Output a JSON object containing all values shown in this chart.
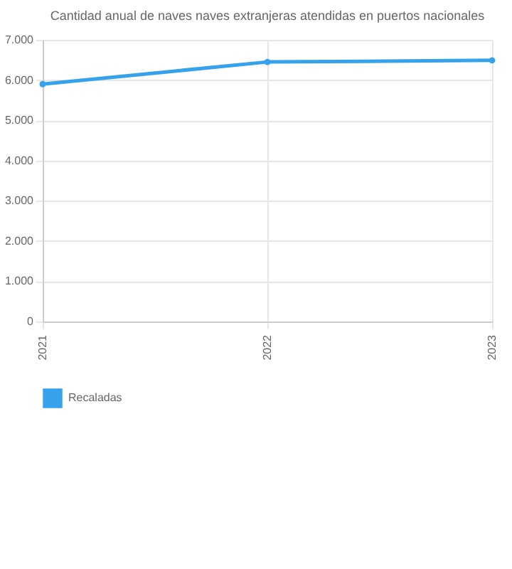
{
  "chart_data": {
    "type": "line",
    "title": "Cantidad anual de naves naves extranjeras atendidas en puertos nacionales",
    "categories": [
      "2021",
      "2022",
      "2023"
    ],
    "series": [
      {
        "name": "Recaladas",
        "color": "#36a2eb",
        "values": [
          5900,
          6450,
          6490
        ]
      }
    ],
    "ylim": [
      0,
      7000
    ],
    "yticks": [
      {
        "value": 0,
        "label": "0"
      },
      {
        "value": 1000,
        "label": "1.000"
      },
      {
        "value": 2000,
        "label": "2.000"
      },
      {
        "value": 3000,
        "label": "3.000"
      },
      {
        "value": 4000,
        "label": "4.000"
      },
      {
        "value": 5000,
        "label": "5.000"
      },
      {
        "value": 6000,
        "label": "6.000"
      },
      {
        "value": 7000,
        "label": "7.000"
      }
    ],
    "grid": true,
    "legend": "bottom",
    "marker": "circle",
    "line_style": "solid"
  }
}
